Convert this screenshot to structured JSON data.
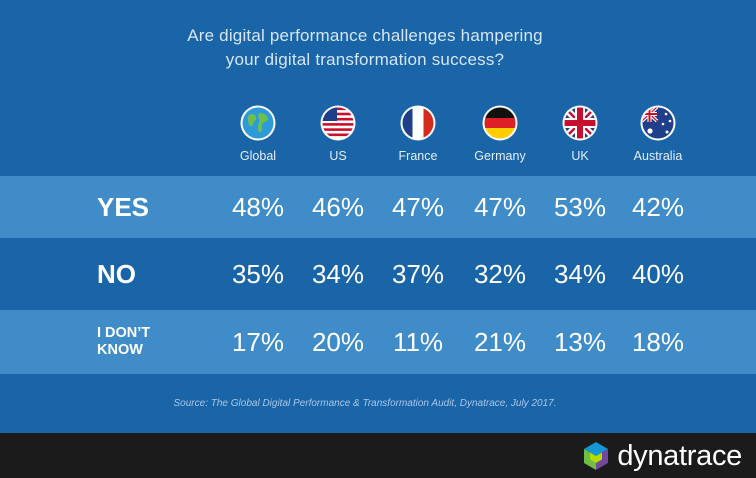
{
  "title_line1": "Are digital performance challenges hampering",
  "title_line2": "your digital transformation success?",
  "source": "Source: The Global Digital Performance & Transformation Audit, Dynatrace, July 2017.",
  "brand": "dynatrace",
  "colors": {
    "background": "#1a64a8",
    "row_highlight": "#3f8cc9",
    "footer": "#1b1b1b"
  },
  "regions": [
    {
      "name": "Global",
      "icon": "globe-icon"
    },
    {
      "name": "US",
      "icon": "us-flag-icon"
    },
    {
      "name": "France",
      "icon": "france-flag-icon"
    },
    {
      "name": "Germany",
      "icon": "germany-flag-icon"
    },
    {
      "name": "UK",
      "icon": "uk-flag-icon"
    },
    {
      "name": "Australia",
      "icon": "australia-flag-icon"
    }
  ],
  "chart_data": {
    "type": "table",
    "columns": [
      "Global",
      "US",
      "France",
      "Germany",
      "UK",
      "Australia"
    ],
    "rows": [
      {
        "label": "YES",
        "display": [
          "48%",
          "46%",
          "47%",
          "47%",
          "53%",
          "42%"
        ],
        "values": [
          48,
          46,
          47,
          47,
          53,
          42
        ]
      },
      {
        "label": "NO",
        "display": [
          "35%",
          "34%",
          "37%",
          "32%",
          "34%",
          "40%"
        ],
        "values": [
          35,
          34,
          37,
          32,
          34,
          40
        ]
      },
      {
        "label": "I DON'T KNOW",
        "label_lines": [
          "I DON’T",
          "KNOW"
        ],
        "display": [
          "17%",
          "20%",
          "11%",
          "21%",
          "13%",
          "18%"
        ],
        "values": [
          17,
          20,
          11,
          21,
          13,
          18
        ]
      }
    ]
  }
}
